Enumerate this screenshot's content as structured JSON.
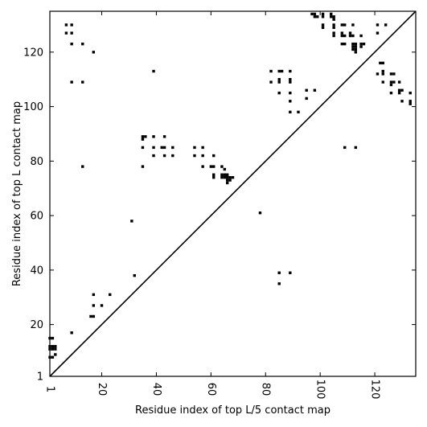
{
  "chart_data": {
    "type": "scatter",
    "title": "",
    "xlabel": "Residue index of top L/5 contact map",
    "ylabel": "Residue index of top L contact map",
    "xlim": [
      1,
      135
    ],
    "ylim": [
      1,
      135
    ],
    "x_ticks": [
      1,
      20,
      40,
      60,
      80,
      100,
      120
    ],
    "y_ticks": [
      1,
      20,
      40,
      60,
      80,
      100,
      120
    ],
    "diagonal": true,
    "grid": false,
    "marker_color": "#000000",
    "upper_contacts": [
      [
        7,
        130
      ],
      [
        9,
        130
      ],
      [
        7,
        127
      ],
      [
        9,
        127
      ],
      [
        9,
        123
      ],
      [
        13,
        123
      ],
      [
        17,
        120
      ],
      [
        9,
        109
      ],
      [
        13,
        109
      ],
      [
        13,
        78
      ],
      [
        31,
        58
      ],
      [
        32,
        38
      ],
      [
        35,
        89
      ],
      [
        35,
        88
      ],
      [
        36,
        89
      ],
      [
        35,
        85
      ],
      [
        35,
        78
      ],
      [
        39,
        89
      ],
      [
        39,
        85
      ],
      [
        39,
        82
      ],
      [
        43,
        89
      ],
      [
        42,
        85
      ],
      [
        43,
        85
      ],
      [
        43,
        82
      ],
      [
        46,
        85
      ],
      [
        46,
        82
      ],
      [
        39,
        113
      ],
      [
        54,
        85
      ],
      [
        54,
        82
      ],
      [
        57,
        85
      ],
      [
        57,
        82
      ],
      [
        57,
        78
      ],
      [
        60,
        78
      ],
      [
        61,
        78
      ],
      [
        61,
        82
      ],
      [
        61,
        75
      ],
      [
        61,
        74
      ],
      [
        64,
        78
      ],
      [
        65,
        77
      ],
      [
        64,
        75
      ],
      [
        65,
        75
      ],
      [
        66,
        75
      ],
      [
        64,
        74
      ],
      [
        65,
        74
      ],
      [
        66,
        74
      ],
      [
        67,
        74
      ],
      [
        68,
        74
      ],
      [
        66,
        73
      ],
      [
        67,
        73
      ],
      [
        66,
        72
      ],
      [
        78,
        61
      ],
      [
        82,
        113
      ],
      [
        82,
        109
      ],
      [
        85,
        113
      ],
      [
        86,
        113
      ],
      [
        85,
        110
      ],
      [
        85,
        109
      ],
      [
        85,
        105
      ],
      [
        89,
        113
      ],
      [
        89,
        110
      ],
      [
        89,
        109
      ],
      [
        89,
        105
      ],
      [
        89,
        102
      ],
      [
        89,
        98
      ],
      [
        92,
        98
      ],
      [
        95,
        106
      ],
      [
        95,
        103
      ],
      [
        98,
        106
      ],
      [
        97,
        134
      ],
      [
        98,
        134
      ],
      [
        98,
        133
      ],
      [
        99,
        133
      ],
      [
        101,
        134
      ],
      [
        101,
        133
      ],
      [
        101,
        130
      ],
      [
        101,
        129
      ],
      [
        104,
        134
      ],
      [
        104,
        133
      ],
      [
        105,
        133
      ],
      [
        105,
        132
      ],
      [
        105,
        130
      ],
      [
        105,
        129
      ],
      [
        105,
        127
      ],
      [
        105,
        126
      ],
      [
        108,
        130
      ],
      [
        109,
        130
      ],
      [
        108,
        127
      ],
      [
        108,
        126
      ],
      [
        109,
        126
      ],
      [
        108,
        123
      ],
      [
        109,
        123
      ],
      [
        111,
        127
      ],
      [
        111,
        126
      ],
      [
        112,
        130
      ],
      [
        112,
        126
      ],
      [
        112,
        123
      ],
      [
        113,
        123
      ],
      [
        112,
        122
      ],
      [
        113,
        122
      ],
      [
        112,
        121
      ],
      [
        113,
        121
      ],
      [
        113,
        120
      ],
      [
        115,
        126
      ],
      [
        115,
        123
      ],
      [
        116,
        123
      ],
      [
        115,
        122
      ],
      [
        109,
        85
      ],
      [
        113,
        85
      ],
      [
        121,
        130
      ],
      [
        121,
        127
      ],
      [
        121,
        112
      ],
      [
        122,
        116
      ],
      [
        123,
        116
      ],
      [
        123,
        113
      ],
      [
        123,
        112
      ],
      [
        124,
        130
      ],
      [
        123,
        109
      ],
      [
        126,
        112
      ],
      [
        127,
        112
      ],
      [
        126,
        109
      ],
      [
        127,
        109
      ],
      [
        126,
        108
      ],
      [
        126,
        105
      ],
      [
        129,
        109
      ],
      [
        129,
        106
      ],
      [
        130,
        106
      ],
      [
        129,
        105
      ],
      [
        130,
        102
      ],
      [
        133,
        105
      ],
      [
        133,
        102
      ],
      [
        133,
        101
      ]
    ],
    "lower_contacts": [
      [
        1,
        15
      ],
      [
        2,
        15
      ],
      [
        1,
        12
      ],
      [
        2,
        12
      ],
      [
        3,
        12
      ],
      [
        1,
        11
      ],
      [
        2,
        11
      ],
      [
        3,
        11
      ],
      [
        1,
        8
      ],
      [
        2,
        8
      ],
      [
        3,
        9
      ],
      [
        9,
        17
      ],
      [
        16,
        23
      ],
      [
        17,
        23
      ],
      [
        17,
        31
      ],
      [
        23,
        31
      ],
      [
        17,
        27
      ],
      [
        20,
        27
      ],
      [
        85,
        39
      ],
      [
        89,
        39
      ],
      [
        85,
        35
      ]
    ]
  }
}
